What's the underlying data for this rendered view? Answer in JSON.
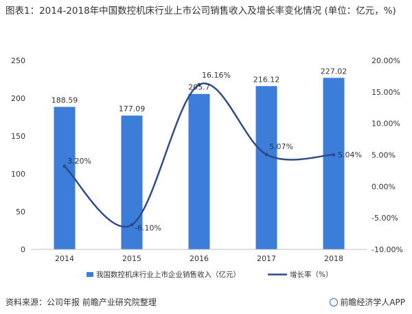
{
  "title": "图表1：2014-2018年中国数控机床行业上市公司销售收入及增长率变化情况 (单位：亿元，%)",
  "source": "资料来源：公司年报 前瞻产业研究院整理",
  "brand": "前瞻经济学人APP",
  "colors": {
    "bar": "#3B7DD8",
    "line": "#2E4A8C",
    "axis": "#BFBFBF",
    "grid": "#E8E8E8"
  },
  "chart_data": {
    "type": "bar",
    "categories": [
      "2014",
      "2015",
      "2016",
      "2017",
      "2018"
    ],
    "series": [
      {
        "name": "我国数控机床行业上市企业销售收入（亿元）",
        "type": "bar",
        "axis": "left",
        "values": [
          188.59,
          177.09,
          205.7,
          216.12,
          227.02
        ],
        "labels": [
          "188.59",
          "177.09",
          "205.7",
          "216.12",
          "227.02"
        ]
      },
      {
        "name": "增长率（%）",
        "type": "line",
        "axis": "right",
        "values": [
          3.2,
          -6.1,
          16.16,
          5.07,
          5.04
        ],
        "labels": [
          "3.20%",
          "-6.10%",
          "16.16%",
          "5.07%",
          "5.04%"
        ]
      }
    ],
    "y_left": {
      "min": 0,
      "max": 250,
      "ticks": [
        "0",
        "50",
        "100",
        "150",
        "200",
        "250"
      ]
    },
    "y_right": {
      "min": -10,
      "max": 20,
      "ticks": [
        "-10.00%",
        "-5.00%",
        "0.00%",
        "5.00%",
        "10.00%",
        "15.00%",
        "20.00%"
      ]
    },
    "legend_position": "bottom"
  }
}
